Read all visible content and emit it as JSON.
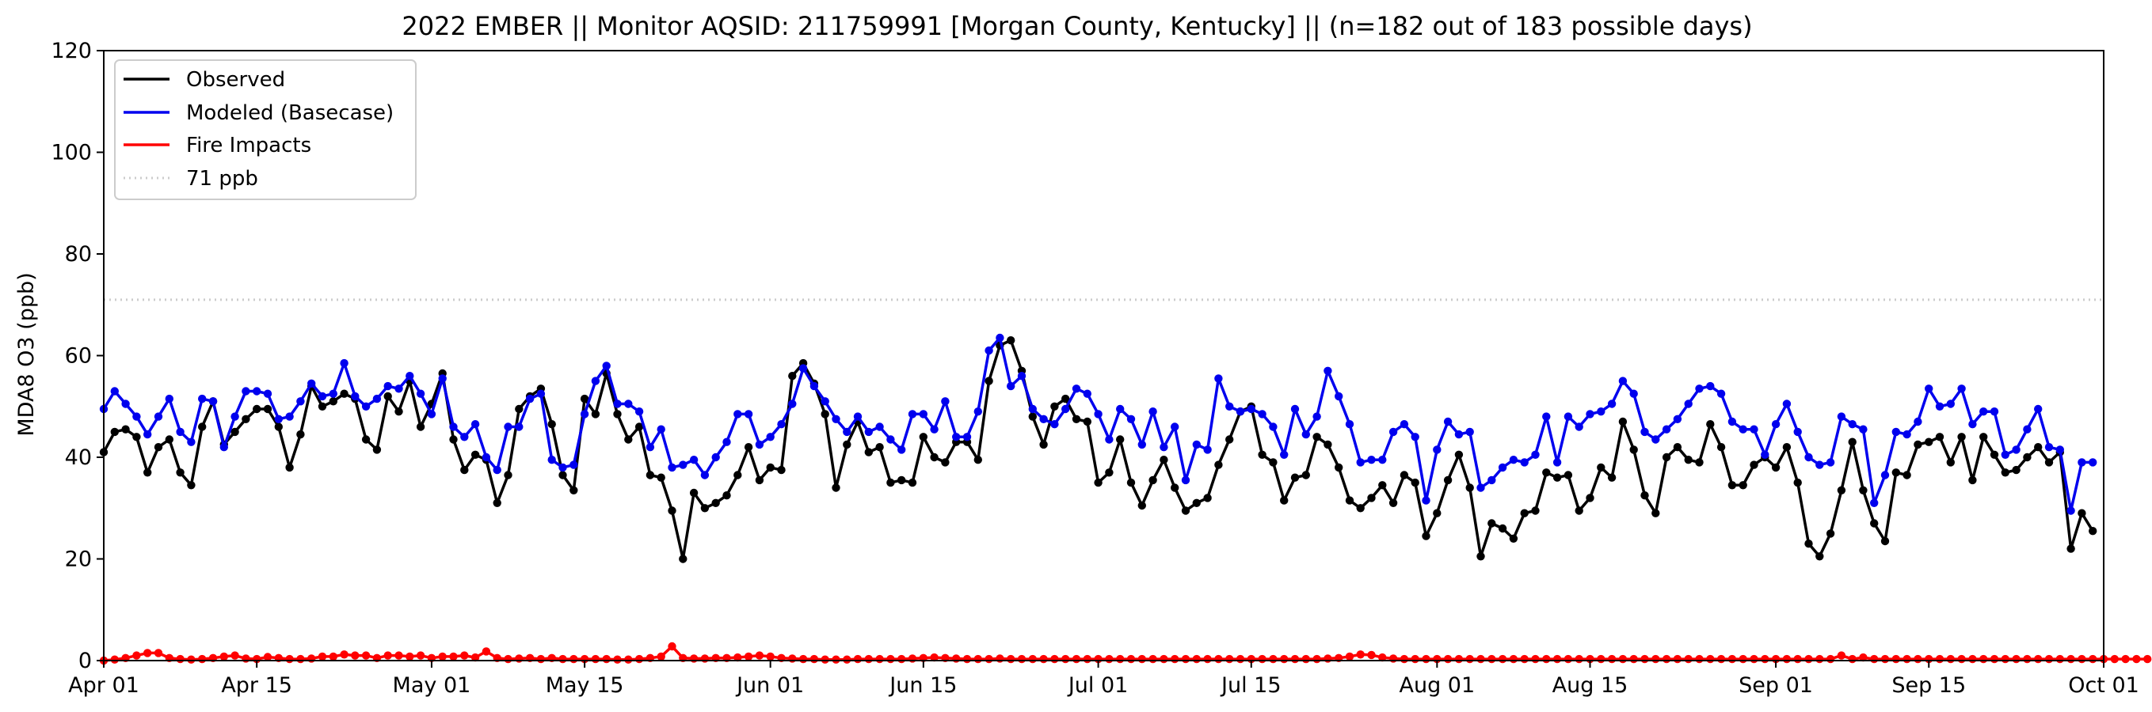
{
  "chart_data": {
    "type": "line",
    "title": "2022 EMBER || Monitor AQSID: 211759991 [Morgan County, Kentucky] || (n=182 out of 183 possible days)",
    "ylabel": "MDA8 O3 (ppb)",
    "xlabel": "",
    "ylim": [
      0,
      120
    ],
    "yticks": [
      0,
      20,
      40,
      60,
      80,
      100,
      120
    ],
    "xlim": [
      "2022-04-01",
      "2022-10-01"
    ],
    "xtick_dates": [
      "2022-04-01",
      "2022-04-15",
      "2022-05-01",
      "2022-05-15",
      "2022-06-01",
      "2022-06-15",
      "2022-07-01",
      "2022-07-15",
      "2022-08-01",
      "2022-08-15",
      "2022-09-01",
      "2022-09-15",
      "2022-10-01"
    ],
    "xtick_labels": [
      "Apr 01",
      "Apr 15",
      "May 01",
      "May 15",
      "Jun 01",
      "Jun 15",
      "Jul 01",
      "Jul 15",
      "Aug 01",
      "Aug 15",
      "Sep 01",
      "Sep 15",
      "Oct 01"
    ],
    "x_start": "2022-04-01",
    "grid": false,
    "legend_position": "top-left",
    "reference_line": {
      "name": "71 ppb",
      "value": 71,
      "color": "#cccccc"
    },
    "series": [
      {
        "name": "Observed",
        "color": "#000000",
        "values": [
          41,
          45,
          45.5,
          44,
          37,
          42,
          43.5,
          37,
          34.5,
          46,
          51,
          42.5,
          45,
          47.5,
          49.5,
          49.5,
          46,
          38,
          44.5,
          54,
          50,
          51,
          52.5,
          51.5,
          43.5,
          41.5,
          52,
          49,
          55,
          46,
          50.5,
          56.5,
          43.5,
          37.5,
          40.5,
          39.5,
          31,
          36.5,
          49.5,
          52,
          53.5,
          46.5,
          36.5,
          33.5,
          51.5,
          48.5,
          56.5,
          48.5,
          43.5,
          46,
          36.5,
          36,
          29.5,
          20,
          33,
          30,
          31,
          32.5,
          36.5,
          42,
          35.5,
          38,
          37.5,
          56,
          58.5,
          54.5,
          48.5,
          34,
          42.5,
          47,
          41,
          42,
          35,
          35.5,
          35,
          44,
          40,
          39,
          43,
          43,
          39.5,
          55,
          62,
          63,
          57,
          48,
          42.5,
          50,
          51.5,
          47.5,
          47,
          35,
          37,
          43.5,
          35,
          30.5,
          35.5,
          39.5,
          34,
          29.5,
          31,
          32,
          38.5,
          43.5,
          49,
          50,
          40.5,
          39,
          31.5,
          36,
          36.5,
          44,
          42.5,
          38,
          31.5,
          30,
          32,
          34.5,
          31,
          36.5,
          35,
          24.5,
          29,
          35.5,
          40.5,
          34,
          20.5,
          27,
          26,
          24,
          29,
          29.5,
          37,
          36,
          36.5,
          29.5,
          32,
          38,
          36,
          47,
          41.5,
          32.5,
          29,
          40,
          42,
          39.5,
          39,
          46.5,
          42,
          34.5,
          34.5,
          38.5,
          40,
          38,
          42,
          35,
          23,
          20.5,
          25,
          33.5,
          43,
          33.5,
          27,
          23.5,
          37,
          36.5,
          42.5,
          43,
          44,
          39,
          44,
          35.5,
          44,
          40.5,
          37,
          37.5,
          40,
          42,
          39,
          41,
          22,
          29,
          25.5
        ]
      },
      {
        "name": "Modeled (Basecase)",
        "color": "#0000ee",
        "values": [
          49.5,
          53,
          50.5,
          48,
          44.5,
          48,
          51.5,
          45,
          43,
          51.5,
          51,
          42,
          48,
          53,
          53,
          52.5,
          47.5,
          48,
          51,
          54.5,
          52,
          52.5,
          58.5,
          52,
          50,
          51.5,
          54,
          53.5,
          56,
          52.5,
          48.5,
          55.5,
          46,
          44,
          46.5,
          40,
          37.5,
          46,
          46,
          51.5,
          52.5,
          39.5,
          38,
          38.5,
          48.5,
          55,
          58,
          50.5,
          50.5,
          49,
          42,
          45.5,
          38,
          38.5,
          39.5,
          36.5,
          40,
          43,
          48.5,
          48.5,
          42.5,
          44,
          46.5,
          50.5,
          57.5,
          54,
          51,
          47.5,
          45,
          48,
          45,
          46,
          43.5,
          41.5,
          48.5,
          48.5,
          45.5,
          51,
          44,
          44,
          49,
          61,
          63.5,
          54,
          56,
          49.5,
          47.5,
          46.5,
          49.5,
          53.5,
          52.5,
          48.5,
          43.5,
          49.5,
          47.5,
          42.5,
          49,
          42,
          46,
          35.5,
          42.5,
          41.5,
          55.5,
          50,
          49,
          49.5,
          48.5,
          46,
          40.5,
          49.5,
          44.5,
          48,
          57,
          52,
          46.5,
          39,
          39.5,
          39.5,
          45,
          46.5,
          44,
          31.5,
          41.5,
          47,
          44.5,
          45,
          34,
          35.5,
          38,
          39.5,
          39,
          40.5,
          48,
          39,
          48,
          46,
          48.5,
          49,
          50.5,
          55,
          52.5,
          45,
          43.5,
          45.5,
          47.5,
          50.5,
          53.5,
          54,
          52.5,
          47,
          45.5,
          45.5,
          40.5,
          46.5,
          50.5,
          45,
          40,
          38.5,
          39,
          48,
          46.5,
          45.5,
          31,
          36.5,
          45,
          44.5,
          47,
          53.5,
          50,
          50.5,
          53.5,
          46.5,
          49,
          49,
          40.5,
          41.5,
          45.5,
          49.5,
          42,
          41.5,
          29.5,
          39,
          39
        ]
      },
      {
        "name": "Fire Impacts",
        "color": "#ff0000",
        "values": [
          0,
          0.2,
          0.5,
          1,
          1.5,
          1.5,
          0.5,
          0.3,
          0.2,
          0.3,
          0.5,
          0.8,
          1,
          0.4,
          0.3,
          0.7,
          0.5,
          0.3,
          0.3,
          0.4,
          0.8,
          0.8,
          1.2,
          1,
          1,
          0.5,
          1,
          1,
          0.8,
          1,
          0.5,
          0.8,
          0.8,
          1,
          0.6,
          1.8,
          0.5,
          0.3,
          0.4,
          0.5,
          0.3,
          0.5,
          0.3,
          0.3,
          0.3,
          0.3,
          0.3,
          0.2,
          0.2,
          0.3,
          0.5,
          0.8,
          2.8,
          0.5,
          0.4,
          0.4,
          0.5,
          0.5,
          0.6,
          0.8,
          1,
          0.8,
          0.5,
          0.4,
          0.3,
          0.3,
          0.2,
          0.2,
          0.2,
          0.3,
          0.3,
          0.3,
          0.3,
          0.3,
          0.4,
          0.5,
          0.6,
          0.5,
          0.4,
          0.3,
          0.3,
          0.3,
          0.4,
          0.3,
          0.3,
          0.3,
          0.3,
          0.3,
          0.3,
          0.3,
          0.3,
          0.3,
          0.3,
          0.3,
          0.3,
          0.3,
          0.3,
          0.3,
          0.3,
          0.3,
          0.3,
          0.3,
          0.3,
          0.3,
          0.3,
          0.3,
          0.3,
          0.3,
          0.3,
          0.3,
          0.3,
          0.3,
          0.4,
          0.5,
          0.8,
          1.2,
          1.1,
          0.6,
          0.4,
          0.3,
          0.3,
          0.3,
          0.3,
          0.3,
          0.3,
          0.3,
          0.3,
          0.3,
          0.3,
          0.3,
          0.3,
          0.3,
          0.3,
          0.3,
          0.3,
          0.3,
          0.3,
          0.3,
          0.3,
          0.3,
          0.3,
          0.3,
          0.3,
          0.3,
          0.3,
          0.3,
          0.3,
          0.3,
          0.3,
          0.3,
          0.3,
          0.3,
          0.3,
          0.3,
          0.3,
          0.3,
          0.3,
          0.3,
          0.3,
          1,
          0.3,
          0.6,
          0.3,
          0.3,
          0.3,
          0.3,
          0.3,
          0.3,
          0.3,
          0.3,
          0.3,
          0.3,
          0.3,
          0.3,
          0.3,
          0.3,
          0.3,
          0.3,
          0.3,
          0.3,
          0.3,
          0.3,
          0.3,
          0.3,
          0.3,
          0.3,
          0.3,
          0.3
        ]
      }
    ]
  }
}
